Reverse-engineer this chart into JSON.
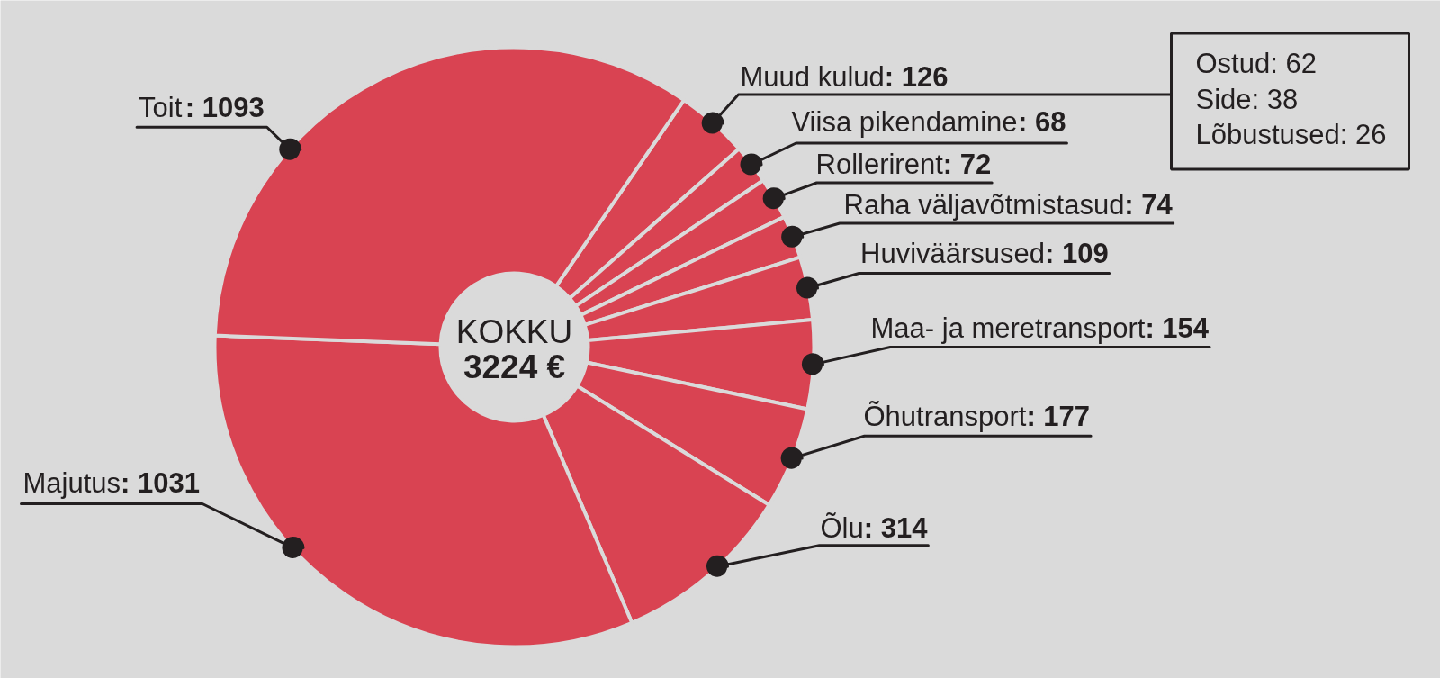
{
  "chart_data": {
    "type": "donut",
    "title": "KOKKU",
    "subtitle": "3224 €",
    "categories": [
      "Muud kulud",
      "Viisa pikendamine",
      "Rollerirent",
      "Raha väljavõtmistasud",
      "Huviväärsused",
      "Maa- ja meretransport",
      "Õhutransport",
      "Õlu",
      "Majutus",
      "Toit"
    ],
    "values": [
      126,
      68,
      72,
      74,
      109,
      154,
      177,
      314,
      1031,
      1093
    ],
    "value_labels": [
      ": 126",
      ": 68",
      ": 72",
      ": 74",
      ": 109",
      ": 154",
      ": 177",
      ": 314",
      ": 1031",
      ": 1093"
    ],
    "colors": [
      "#d94352",
      "#d94352",
      "#d94352",
      "#d94352",
      "#d94352",
      "#d94352",
      "#d94352",
      "#d94352",
      "#d94352",
      "#d94352"
    ],
    "annotations": [
      "Ostud: 62",
      "Side: 38",
      "Lõbustused: 26"
    ]
  }
}
